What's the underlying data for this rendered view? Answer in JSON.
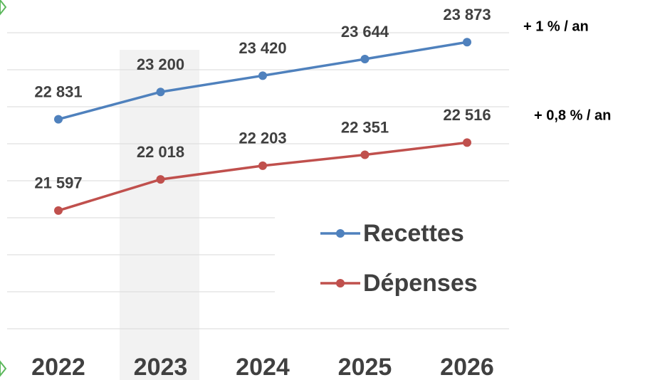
{
  "chart_data": {
    "type": "line",
    "categories": [
      "2022",
      "2023",
      "2024",
      "2025",
      "2026"
    ],
    "series": [
      {
        "name": "Recettes",
        "color": "#4f81bd",
        "values": [
          22831,
          23200,
          23420,
          23644,
          23873
        ],
        "value_labels": [
          "22 831",
          "23 200",
          "23 420",
          "23 644",
          "23 873"
        ]
      },
      {
        "name": "Dépenses",
        "color": "#c0504d",
        "values": [
          21597,
          22018,
          22203,
          22351,
          22516
        ],
        "value_labels": [
          "21 597",
          "22 018",
          "22 203",
          "22 351",
          "22 516"
        ]
      }
    ],
    "annotations": [
      "+ 1 % / an",
      "+ 0,8 % / an"
    ],
    "ylim": [
      20000,
      24000
    ],
    "yticks": [
      20000,
      20500,
      21000,
      21500,
      22000,
      22500,
      23000,
      23500,
      24000
    ],
    "grid": true
  }
}
